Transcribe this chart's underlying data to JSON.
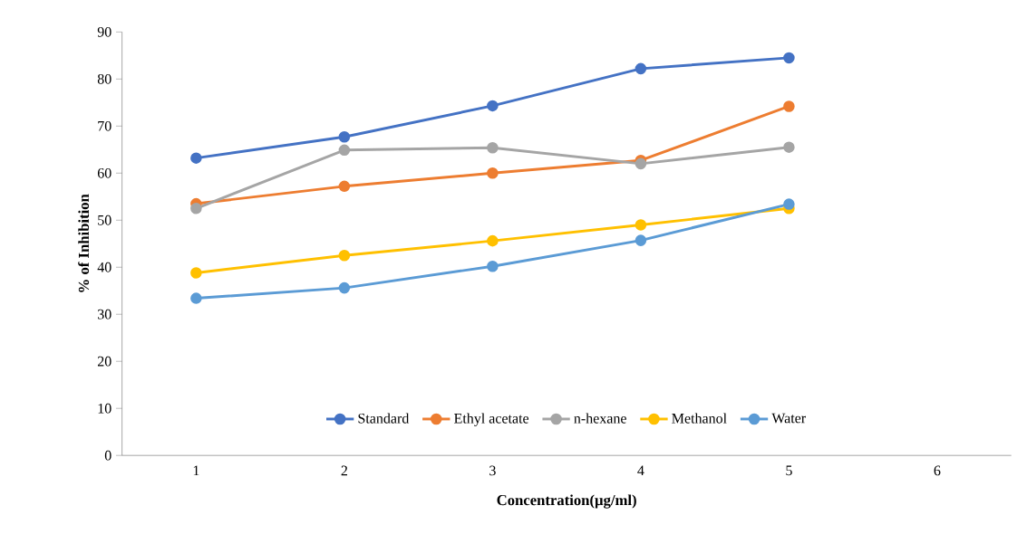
{
  "chart_data": {
    "type": "line",
    "xlabel": "Concentration(µg/ml)",
    "ylabel": "% of Inhibition",
    "categories": [
      "1",
      "2",
      "3",
      "4",
      "5",
      "6"
    ],
    "series": [
      {
        "name": "Standard",
        "color": "#4472c4",
        "values": [
          63.2,
          67.7,
          74.3,
          82.2,
          84.5,
          null
        ]
      },
      {
        "name": "Ethyl acetate",
        "color": "#ed7d31",
        "values": [
          53.5,
          57.2,
          60.0,
          62.7,
          74.2,
          null
        ]
      },
      {
        "name": "n-hexane",
        "color": "#a5a5a5",
        "values": [
          52.5,
          64.9,
          65.4,
          62.0,
          65.5,
          null
        ]
      },
      {
        "name": "Methanol",
        "color": "#ffc000",
        "values": [
          38.8,
          42.5,
          45.6,
          49.0,
          52.5,
          null
        ]
      },
      {
        "name": "Water",
        "color": "#5b9bd5",
        "values": [
          33.4,
          35.6,
          40.2,
          45.7,
          53.4,
          null
        ]
      }
    ],
    "ylim": [
      0,
      90
    ],
    "yticks": [
      0,
      10,
      20,
      30,
      40,
      50,
      60,
      70,
      80,
      90
    ],
    "grid": false,
    "legend": "bottom",
    "marker": "circle",
    "line_style": "solid"
  }
}
